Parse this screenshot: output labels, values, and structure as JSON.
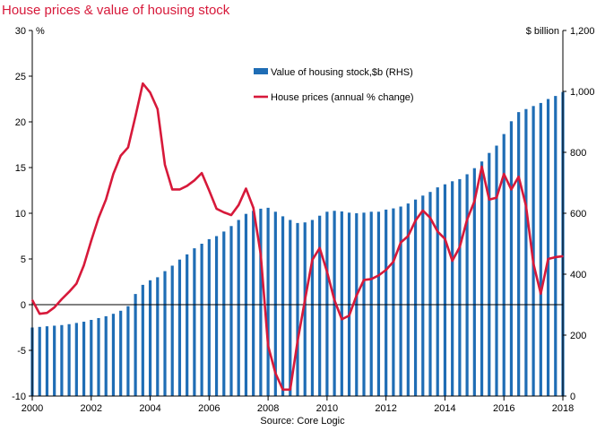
{
  "title": "House prices & value of housing stock",
  "source": "Source: Core Logic",
  "chart_data": {
    "type": "bar+line",
    "title": "House prices & value of housing stock",
    "left_axis": {
      "unit": "%",
      "ylim": [
        -10,
        30
      ],
      "ticks": [
        "30",
        "25",
        "20",
        "15",
        "10",
        "5",
        "0",
        "-5",
        "-10"
      ]
    },
    "right_axis": {
      "unit": "$ billion",
      "ylim": [
        0,
        1200
      ],
      "ticks": [
        "1,200",
        "1,000",
        "800",
        "600",
        "400",
        "200",
        "0"
      ]
    },
    "x_axis": {
      "xlim": [
        2000,
        2018
      ],
      "ticks": [
        "2000",
        "2002",
        "2004",
        "2006",
        "2008",
        "2010",
        "2012",
        "2014",
        "2016",
        "2018"
      ]
    },
    "legend": {
      "placement": "top-center"
    },
    "series": [
      {
        "name": "Value of housing stock,$b (RHS)",
        "type": "bar",
        "axis": "right",
        "color": "#1f6db5",
        "x": [
          2000.0,
          2000.25,
          2000.5,
          2000.75,
          2001.0,
          2001.25,
          2001.5,
          2001.75,
          2002.0,
          2002.25,
          2002.5,
          2002.75,
          2003.0,
          2003.25,
          2003.5,
          2003.75,
          2004.0,
          2004.25,
          2004.5,
          2004.75,
          2005.0,
          2005.25,
          2005.5,
          2005.75,
          2006.0,
          2006.25,
          2006.5,
          2006.75,
          2007.0,
          2007.25,
          2007.5,
          2007.75,
          2008.0,
          2008.25,
          2008.5,
          2008.75,
          2009.0,
          2009.25,
          2009.5,
          2009.75,
          2010.0,
          2010.25,
          2010.5,
          2010.75,
          2011.0,
          2011.25,
          2011.5,
          2011.75,
          2012.0,
          2012.25,
          2012.5,
          2012.75,
          2013.0,
          2013.25,
          2013.5,
          2013.75,
          2014.0,
          2014.25,
          2014.5,
          2014.75,
          2015.0,
          2015.25,
          2015.5,
          2015.75,
          2016.0,
          2016.25,
          2016.5,
          2016.75,
          2017.0,
          2017.25,
          2017.5,
          2017.75,
          2018.0
        ],
        "values": [
          225,
          227,
          229,
          231,
          233,
          236,
          240,
          244,
          250,
          256,
          262,
          270,
          280,
          295,
          335,
          365,
          380,
          390,
          410,
          428,
          448,
          465,
          485,
          500,
          515,
          525,
          540,
          558,
          578,
          598,
          608,
          615,
          618,
          605,
          590,
          578,
          568,
          570,
          578,
          592,
          605,
          608,
          606,
          602,
          600,
          602,
          605,
          605,
          612,
          616,
          622,
          632,
          645,
          658,
          670,
          685,
          695,
          705,
          712,
          728,
          748,
          770,
          798,
          822,
          860,
          902,
          932,
          942,
          952,
          962,
          975,
          985,
          998
        ]
      },
      {
        "name": "House prices (annual % change)",
        "type": "line",
        "axis": "left",
        "color": "#d7193a",
        "x": [
          2000.0,
          2000.25,
          2000.5,
          2000.75,
          2001.0,
          2001.25,
          2001.5,
          2001.75,
          2002.0,
          2002.25,
          2002.5,
          2002.75,
          2003.0,
          2003.25,
          2003.5,
          2003.75,
          2004.0,
          2004.25,
          2004.5,
          2004.75,
          2005.0,
          2005.25,
          2005.5,
          2005.75,
          2006.0,
          2006.25,
          2006.5,
          2006.75,
          2007.0,
          2007.25,
          2007.5,
          2007.75,
          2008.0,
          2008.25,
          2008.5,
          2008.75,
          2009.0,
          2009.25,
          2009.5,
          2009.75,
          2010.0,
          2010.25,
          2010.5,
          2010.75,
          2011.0,
          2011.25,
          2011.5,
          2011.75,
          2012.0,
          2012.25,
          2012.5,
          2012.75,
          2013.0,
          2013.25,
          2013.5,
          2013.75,
          2014.0,
          2014.25,
          2014.5,
          2014.75,
          2015.0,
          2015.25,
          2015.5,
          2015.75,
          2016.0,
          2016.25,
          2016.5,
          2016.75,
          2017.0,
          2017.25,
          2017.5,
          2017.75,
          2018.0
        ],
        "values": [
          0.5,
          -1.0,
          -0.9,
          -0.3,
          0.6,
          1.4,
          2.3,
          4.3,
          7.0,
          9.5,
          11.5,
          14.3,
          16.3,
          17.2,
          20.6,
          24.2,
          23.2,
          21.4,
          15.3,
          12.6,
          12.6,
          13.0,
          13.6,
          14.4,
          12.5,
          10.5,
          10.1,
          9.8,
          10.9,
          12.7,
          10.6,
          5.5,
          -4.5,
          -7.5,
          -9.3,
          -9.3,
          -4.0,
          0.5,
          4.9,
          6.2,
          3.6,
          0.5,
          -1.6,
          -1.2,
          1.0,
          2.7,
          2.8,
          3.2,
          3.8,
          4.7,
          6.8,
          7.5,
          9.2,
          10.3,
          9.5,
          8.0,
          7.2,
          4.8,
          6.3,
          9.3,
          11.3,
          15.1,
          11.5,
          11.7,
          14.3,
          12.6,
          14.0,
          10.8,
          4.5,
          1.2,
          5.0,
          5.2,
          5.3
        ]
      }
    ]
  }
}
